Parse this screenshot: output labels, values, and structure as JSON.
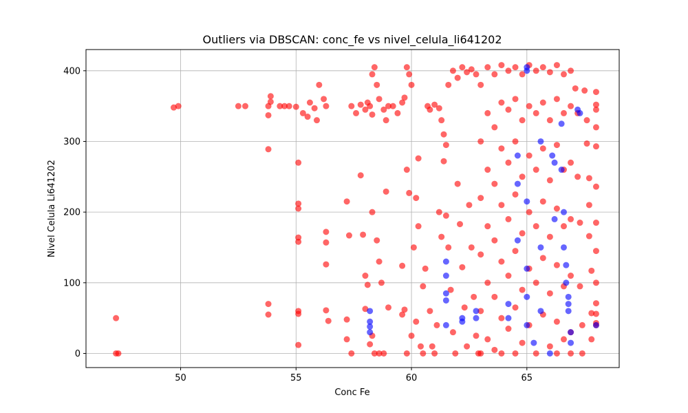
{
  "chart_data": {
    "type": "scatter",
    "title": "Outliers via DBSCAN: conc_fe vs nivel_celula_li641202",
    "xlabel": "Conc Fe",
    "ylabel": "Nivel Celula Li641202",
    "xlim": [
      45.9,
      69.0
    ],
    "ylim": [
      -20,
      430
    ],
    "xticks": [
      50,
      55,
      60,
      65
    ],
    "yticks": [
      0,
      100,
      200,
      300,
      400
    ],
    "grid": true,
    "series": [
      {
        "color": "#ff0000",
        "opacity": 0.6,
        "points": [
          [
            47.2,
            50
          ],
          [
            47.2,
            0
          ],
          [
            47.3,
            0
          ],
          [
            49.7,
            348
          ],
          [
            49.9,
            350
          ],
          [
            52.5,
            350
          ],
          [
            52.8,
            350
          ],
          [
            53.8,
            350
          ],
          [
            53.9,
            356
          ],
          [
            53.9,
            364
          ],
          [
            53.8,
            337
          ],
          [
            53.8,
            289
          ],
          [
            53.8,
            70
          ],
          [
            53.8,
            55
          ],
          [
            54.3,
            350
          ],
          [
            54.5,
            350
          ],
          [
            54.7,
            350
          ],
          [
            55.0,
            349
          ],
          [
            55.1,
            270
          ],
          [
            55.1,
            212
          ],
          [
            55.1,
            205
          ],
          [
            55.1,
            164
          ],
          [
            55.1,
            158
          ],
          [
            55.1,
            60
          ],
          [
            55.1,
            56
          ],
          [
            55.1,
            12
          ],
          [
            55.3,
            340
          ],
          [
            55.5,
            335
          ],
          [
            55.6,
            355
          ],
          [
            55.8,
            347
          ],
          [
            55.9,
            330
          ],
          [
            56.0,
            380
          ],
          [
            56.2,
            360
          ],
          [
            56.3,
            350
          ],
          [
            56.3,
            172
          ],
          [
            56.3,
            157
          ],
          [
            56.3,
            126
          ],
          [
            56.3,
            61
          ],
          [
            56.4,
            46
          ],
          [
            57.2,
            215
          ],
          [
            57.3,
            167
          ],
          [
            57.2,
            48
          ],
          [
            57.2,
            20
          ],
          [
            57.4,
            0
          ],
          [
            57.4,
            350
          ],
          [
            57.6,
            340
          ],
          [
            57.8,
            352
          ],
          [
            58.0,
            345
          ],
          [
            58.1,
            355
          ],
          [
            58.2,
            350
          ],
          [
            58.3,
            338
          ],
          [
            57.8,
            252
          ],
          [
            57.9,
            168
          ],
          [
            58.0,
            110
          ],
          [
            58.0,
            63
          ],
          [
            58.1,
            97
          ],
          [
            58.2,
            13
          ],
          [
            58.3,
            25
          ],
          [
            58.4,
            0
          ],
          [
            58.3,
            395
          ],
          [
            58.4,
            405
          ],
          [
            58.5,
            380
          ],
          [
            58.6,
            360
          ],
          [
            58.8,
            345
          ],
          [
            58.9,
            330
          ],
          [
            59.0,
            350
          ],
          [
            58.3,
            200
          ],
          [
            58.5,
            160
          ],
          [
            58.6,
            130
          ],
          [
            58.7,
            100
          ],
          [
            58.6,
            0
          ],
          [
            58.8,
            0
          ],
          [
            58.9,
            229
          ],
          [
            59.0,
            65
          ],
          [
            59.2,
            350
          ],
          [
            59.4,
            340
          ],
          [
            59.6,
            355
          ],
          [
            59.7,
            362
          ],
          [
            59.8,
            405
          ],
          [
            59.9,
            395
          ],
          [
            60.0,
            380
          ],
          [
            59.6,
            124
          ],
          [
            59.6,
            55
          ],
          [
            59.7,
            62
          ],
          [
            59.8,
            260
          ],
          [
            59.9,
            227
          ],
          [
            60.0,
            25
          ],
          [
            59.8,
            0
          ],
          [
            60.1,
            150
          ],
          [
            60.2,
            220
          ],
          [
            60.3,
            276
          ],
          [
            60.3,
            180
          ],
          [
            60.2,
            45
          ],
          [
            60.4,
            10
          ],
          [
            60.5,
            0
          ],
          [
            60.5,
            95
          ],
          [
            60.6,
            120
          ],
          [
            60.7,
            350
          ],
          [
            60.8,
            345
          ],
          [
            61.0,
            352
          ],
          [
            61.2,
            347
          ],
          [
            61.3,
            330
          ],
          [
            61.4,
            310
          ],
          [
            61.5,
            295
          ],
          [
            60.8,
            60
          ],
          [
            60.9,
            10
          ],
          [
            61.0,
            0
          ],
          [
            61.1,
            40
          ],
          [
            61.2,
            200
          ],
          [
            61.3,
            165
          ],
          [
            61.4,
            272
          ],
          [
            61.5,
            195
          ],
          [
            61.6,
            380
          ],
          [
            61.8,
            400
          ],
          [
            62.0,
            390
          ],
          [
            62.2,
            405
          ],
          [
            62.4,
            398
          ],
          [
            62.6,
            402
          ],
          [
            62.8,
            395
          ],
          [
            61.6,
            150
          ],
          [
            61.7,
            90
          ],
          [
            61.8,
            30
          ],
          [
            61.9,
            0
          ],
          [
            62.0,
            240
          ],
          [
            62.1,
            183
          ],
          [
            62.2,
            122
          ],
          [
            62.3,
            65
          ],
          [
            62.4,
            10
          ],
          [
            62.5,
            210
          ],
          [
            62.6,
            150
          ],
          [
            62.7,
            80
          ],
          [
            62.8,
            25
          ],
          [
            62.9,
            0
          ],
          [
            63.0,
            380
          ],
          [
            63.0,
            300
          ],
          [
            63.0,
            220
          ],
          [
            63.0,
            140
          ],
          [
            63.0,
            60
          ],
          [
            63.0,
            0
          ],
          [
            63.3,
            405
          ],
          [
            63.3,
            340
          ],
          [
            63.3,
            260
          ],
          [
            63.3,
            180
          ],
          [
            63.3,
            100
          ],
          [
            63.3,
            20
          ],
          [
            63.6,
            395
          ],
          [
            63.6,
            320
          ],
          [
            63.6,
            240
          ],
          [
            63.6,
            160
          ],
          [
            63.6,
            80
          ],
          [
            63.6,
            5
          ],
          [
            63.9,
            408
          ],
          [
            63.9,
            355
          ],
          [
            63.9,
            290
          ],
          [
            63.9,
            210
          ],
          [
            63.9,
            130
          ],
          [
            63.9,
            50
          ],
          [
            63.9,
            0
          ],
          [
            64.2,
            400
          ],
          [
            64.2,
            345
          ],
          [
            64.2,
            270
          ],
          [
            64.2,
            190
          ],
          [
            64.2,
            110
          ],
          [
            64.2,
            35
          ],
          [
            64.5,
            405
          ],
          [
            64.5,
            360
          ],
          [
            64.5,
            300
          ],
          [
            64.5,
            225
          ],
          [
            64.5,
            145
          ],
          [
            64.5,
            65
          ],
          [
            64.5,
            0
          ],
          [
            64.8,
            395
          ],
          [
            64.8,
            330
          ],
          [
            64.8,
            250
          ],
          [
            64.8,
            170
          ],
          [
            64.8,
            90
          ],
          [
            64.8,
            15
          ],
          [
            65.1,
            408
          ],
          [
            65.1,
            350
          ],
          [
            65.1,
            280
          ],
          [
            65.1,
            200
          ],
          [
            65.1,
            120
          ],
          [
            65.1,
            40
          ],
          [
            65.4,
            400
          ],
          [
            65.4,
            340
          ],
          [
            65.4,
            260
          ],
          [
            65.4,
            180
          ],
          [
            65.4,
            100
          ],
          [
            65.4,
            0
          ],
          [
            65.7,
            405
          ],
          [
            65.7,
            355
          ],
          [
            65.7,
            290
          ],
          [
            65.7,
            215
          ],
          [
            65.7,
            135
          ],
          [
            65.7,
            55
          ],
          [
            66.0,
            398
          ],
          [
            66.0,
            330
          ],
          [
            66.0,
            245
          ],
          [
            66.0,
            165
          ],
          [
            66.0,
            85
          ],
          [
            66.0,
            10
          ],
          [
            66.3,
            408
          ],
          [
            66.3,
            360
          ],
          [
            66.3,
            295
          ],
          [
            66.3,
            205
          ],
          [
            66.3,
            125
          ],
          [
            66.3,
            45
          ],
          [
            66.3,
            0
          ],
          [
            66.6,
            395
          ],
          [
            66.6,
            340
          ],
          [
            66.6,
            260
          ],
          [
            66.6,
            180
          ],
          [
            66.6,
            95
          ],
          [
            66.6,
            20
          ],
          [
            66.9,
            400
          ],
          [
            66.9,
            350
          ],
          [
            66.9,
            270
          ],
          [
            66.9,
            190
          ],
          [
            66.9,
            110
          ],
          [
            66.9,
            30
          ],
          [
            66.9,
            0
          ],
          [
            67.1,
            375
          ],
          [
            67.2,
            340
          ],
          [
            67.2,
            250
          ],
          [
            67.3,
            185
          ],
          [
            67.3,
            95
          ],
          [
            67.4,
            40
          ],
          [
            67.4,
            0
          ],
          [
            67.5,
            372
          ],
          [
            67.6,
            330
          ],
          [
            67.6,
            297
          ],
          [
            67.7,
            248
          ],
          [
            67.7,
            210
          ],
          [
            67.7,
            166
          ],
          [
            67.8,
            117
          ],
          [
            67.8,
            57
          ],
          [
            67.8,
            20
          ],
          [
            68.0,
            370
          ],
          [
            68.0,
            352
          ],
          [
            68.0,
            345
          ],
          [
            68.0,
            320
          ],
          [
            68.0,
            293
          ],
          [
            68.0,
            236
          ],
          [
            68.0,
            185
          ],
          [
            68.0,
            145
          ],
          [
            68.0,
            100
          ],
          [
            68.0,
            71
          ],
          [
            68.0,
            56
          ],
          [
            68.0,
            43
          ],
          [
            68.0,
            40
          ]
        ]
      },
      {
        "color": "#0000ff",
        "opacity": 0.6,
        "points": [
          [
            58.2,
            60
          ],
          [
            58.2,
            45
          ],
          [
            58.2,
            38
          ],
          [
            58.2,
            30
          ],
          [
            61.5,
            130
          ],
          [
            61.5,
            110
          ],
          [
            61.5,
            85
          ],
          [
            61.5,
            75
          ],
          [
            61.5,
            40
          ],
          [
            62.2,
            50
          ],
          [
            62.2,
            45
          ],
          [
            62.8,
            60
          ],
          [
            62.8,
            50
          ],
          [
            64.2,
            70
          ],
          [
            64.2,
            50
          ],
          [
            64.6,
            280
          ],
          [
            64.6,
            240
          ],
          [
            64.6,
            160
          ],
          [
            65.0,
            405
          ],
          [
            65.0,
            400
          ],
          [
            65.0,
            215
          ],
          [
            65.0,
            120
          ],
          [
            65.0,
            80
          ],
          [
            65.0,
            40
          ],
          [
            65.3,
            15
          ],
          [
            65.6,
            300
          ],
          [
            65.6,
            150
          ],
          [
            65.6,
            60
          ],
          [
            66.0,
            0
          ],
          [
            66.1,
            280
          ],
          [
            66.2,
            270
          ],
          [
            66.2,
            190
          ],
          [
            66.5,
            325
          ],
          [
            66.5,
            260
          ],
          [
            66.6,
            200
          ],
          [
            66.6,
            150
          ],
          [
            66.7,
            125
          ],
          [
            66.7,
            100
          ],
          [
            66.8,
            80
          ],
          [
            66.8,
            70
          ],
          [
            66.8,
            60
          ],
          [
            66.9,
            30
          ],
          [
            66.9,
            15
          ],
          [
            67.2,
            345
          ],
          [
            67.3,
            340
          ],
          [
            68.0,
            40
          ]
        ]
      }
    ]
  }
}
